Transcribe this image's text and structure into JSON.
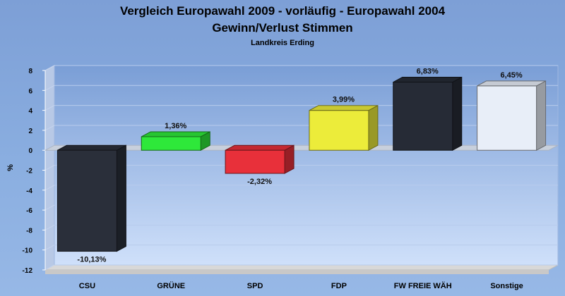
{
  "chart_data": {
    "type": "bar",
    "title": "Vergleich Europawahl 2009 - vorläufig - Europawahl 2004",
    "subtitle": "Gewinn/Verlust Stimmen",
    "region": "Landkreis Erding",
    "ylabel": "%",
    "xlabel": "",
    "ylim": [
      -12,
      8
    ],
    "yticks": [
      8,
      6,
      4,
      2,
      0,
      -2,
      -4,
      -6,
      -8,
      -10,
      -12
    ],
    "grid": true,
    "legend": "none",
    "categories": [
      "CSU",
      "GRÜNE",
      "SPD",
      "FDP",
      "FW FREIE WÄH",
      "Sonstige"
    ],
    "values": [
      -10.13,
      1.36,
      -2.32,
      3.99,
      6.83,
      6.45
    ],
    "value_labels": [
      "-10,13%",
      "1,36%",
      "-2,32%",
      "3,99%",
      "6,83%",
      "6,45%"
    ],
    "colors": [
      "#2a2f3a",
      "#2ee83a",
      "#e8303a",
      "#ecec3a",
      "#262b36",
      "#e8eef8"
    ]
  }
}
